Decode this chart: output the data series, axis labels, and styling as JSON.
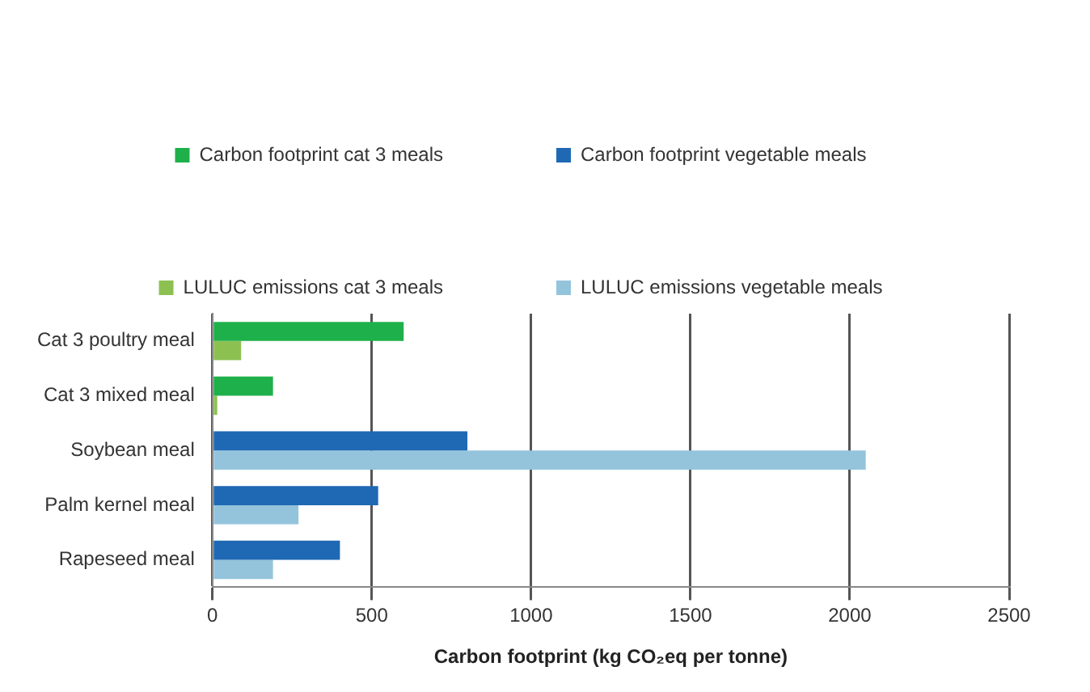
{
  "chart_data": {
    "type": "bar",
    "orientation": "horizontal",
    "xlabel": "Carbon footprint (kg CO₂eq per tonne)",
    "categories": [
      "Cat 3 poultry meal",
      "Cat 3 mixed meal",
      "Soybean meal",
      "Palm kernel meal",
      "Rapeseed meal"
    ],
    "series": [
      {
        "name": "Carbon footprint cat 3 meals",
        "color": "#1eb04a",
        "values": [
          600,
          190,
          null,
          null,
          null
        ]
      },
      {
        "name": "Carbon footprint vegetable meals",
        "color": "#1f69b4",
        "values": [
          null,
          null,
          800,
          520,
          400
        ]
      },
      {
        "name": "LULUC emissions cat 3 meals",
        "color": "#8cc152",
        "values": [
          90,
          15,
          null,
          null,
          null
        ]
      },
      {
        "name": "LULUC emissions vegetable meals",
        "color": "#94c4dc",
        "values": [
          null,
          null,
          2050,
          270,
          190
        ]
      }
    ],
    "xlim": [
      0,
      2500
    ],
    "xticks": [
      0,
      500,
      1000,
      1500,
      2000,
      2500
    ],
    "grid": "x",
    "legend": "top"
  }
}
